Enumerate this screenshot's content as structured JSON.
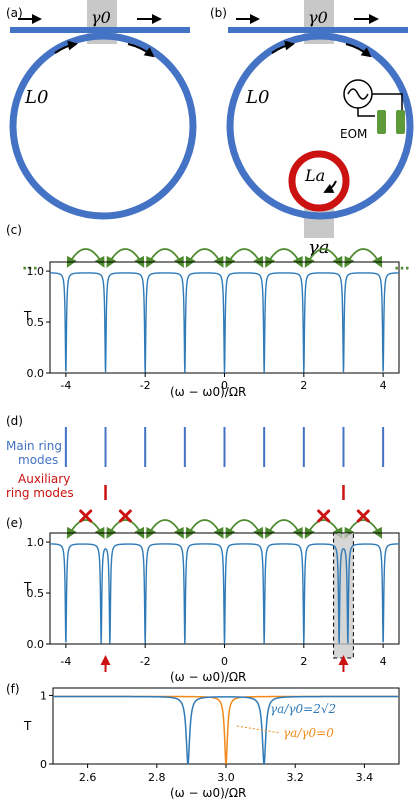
{
  "panels": {
    "a": {
      "label": "(a)",
      "coupling": "γ0",
      "ring": "L0"
    },
    "b": {
      "label": "(b)",
      "coupling_main": "γ0",
      "ring_main": "L0",
      "ring_aux": "La",
      "coupling_aux": "γa",
      "modulator": "EOM"
    },
    "c": {
      "label": "(c)",
      "dots": "···"
    },
    "d": {
      "label": "(d)",
      "main_modes_label_1": "Main ring",
      "main_modes_label_2": "modes",
      "aux_modes_label_1": "Auxiliary",
      "aux_modes_label_2": "ring modes"
    },
    "e": {
      "label": "(e)"
    },
    "f": {
      "label": "(f)",
      "legend_blue": "γa/γ0=2√2",
      "legend_orange": "γa/γ0=0"
    }
  },
  "colors": {
    "main": "#4472c4",
    "trace": "#2f7ab8",
    "aux": "#cc1111",
    "coupling": "#4e8a2e",
    "orange": "#f08a1a",
    "grey": "#c8c8c8"
  },
  "chart_data": [
    {
      "type": "line",
      "panel": "c",
      "ylabel": "T",
      "xlabel": "(ω − ω0)/ΩR",
      "xlim": [
        -4.4,
        4.4
      ],
      "ylim": [
        0,
        1.05
      ],
      "x_ticks": [
        "-4",
        "-2",
        "0",
        "2",
        "4"
      ],
      "y_ticks": [
        "0.0",
        "0.5",
        "1.0"
      ],
      "dip_positions": [
        -4,
        -3,
        -2,
        -1,
        0,
        1,
        2,
        3,
        4
      ]
    },
    {
      "type": "line",
      "panel": "e",
      "ylabel": "T",
      "xlabel": "(ω − ω0)/ΩR",
      "xlim": [
        -4.4,
        4.4
      ],
      "ylim": [
        0,
        1.05
      ],
      "x_ticks": [
        "-4",
        "-2",
        "0",
        "2",
        "4"
      ],
      "y_ticks": [
        "0.0",
        "0.5",
        "1.0"
      ],
      "dip_positions": [
        -4,
        -3.11,
        -2.89,
        -2,
        -1,
        0,
        1,
        2,
        2.89,
        3.11,
        4
      ]
    },
    {
      "type": "line",
      "panel": "f",
      "ylabel": "T",
      "xlabel": "(ω − ω0)/ΩR",
      "xlim": [
        2.5,
        3.5
      ],
      "ylim": [
        0,
        1.05
      ],
      "x_ticks": [
        "2.6",
        "2.8",
        "3.0",
        "3.2",
        "3.4"
      ],
      "y_ticks": [
        "0",
        "1"
      ],
      "series": [
        {
          "name": "γa/γ0=2√2",
          "dips": [
            2.89,
            3.11
          ]
        },
        {
          "name": "γa/γ0=0",
          "dips": [
            3.0
          ]
        }
      ]
    }
  ]
}
